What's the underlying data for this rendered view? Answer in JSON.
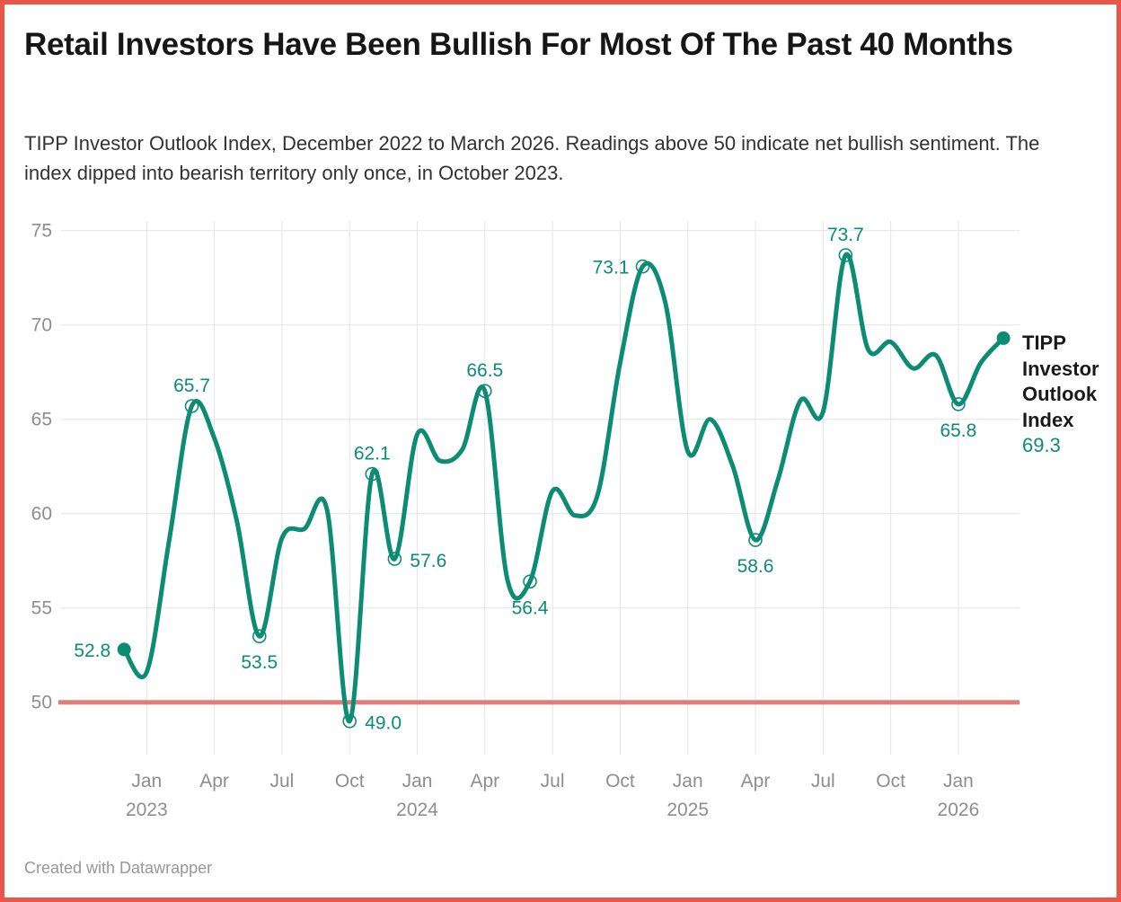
{
  "header": {
    "title": "Retail Investors Have Been Bullish For Most Of The Past 40 Months",
    "subtitle": "TIPP Investor Outlook Index, December 2022 to March 2026. Readings above 50 indicate net bullish sentiment. The index dipped into bearish territory only once, in October 2023."
  },
  "footer": {
    "credit": "Created with Datawrapper"
  },
  "side_label": {
    "lines": [
      "TIPP",
      "Investor",
      "Outlook",
      "Index"
    ],
    "value": "69.3"
  },
  "colors": {
    "line": "#0d8c74",
    "baseline": "#e27c78",
    "frame_border": "#e9574a",
    "grid": "#e4e4e4",
    "axis_text": "#8e8e8e",
    "title_text": "#161616",
    "subtitle_text": "#323232",
    "credit_text": "#979797",
    "label_text": "#0d8c74"
  },
  "chart_data": {
    "type": "line",
    "title": "Retail Investors Have Been Bullish For Most Of The Past 40 Months",
    "series_name": "TIPP Investor Outlook Index",
    "xlabel": "",
    "ylabel": "",
    "ylim": [
      47,
      75.5
    ],
    "grid": true,
    "legend_position": "right-annotation",
    "x": [
      "Dec 2022",
      "Jan 2023",
      "Feb 2023",
      "Mar 2023",
      "Apr 2023",
      "May 2023",
      "Jun 2023",
      "Jul 2023",
      "Aug 2023",
      "Sep 2023",
      "Oct 2023",
      "Nov 2023",
      "Dec 2023",
      "Jan 2024",
      "Feb 2024",
      "Mar 2024",
      "Apr 2024",
      "May 2024",
      "Jun 2024",
      "Jul 2024",
      "Aug 2024",
      "Sep 2024",
      "Oct 2024",
      "Nov 2024",
      "Dec 2024",
      "Jan 2025",
      "Feb 2025",
      "Mar 2025",
      "Apr 2025",
      "May 2025",
      "Jun 2025",
      "Jul 2025",
      "Aug 2025",
      "Sep 2025",
      "Oct 2025",
      "Nov 2025",
      "Dec 2025",
      "Jan 2026",
      "Feb 2026",
      "Mar 2026"
    ],
    "values": [
      52.8,
      51.6,
      58.6,
      65.7,
      64.0,
      59.6,
      53.5,
      58.7,
      59.2,
      60.2,
      49.0,
      62.1,
      57.6,
      64.2,
      62.8,
      63.4,
      66.5,
      56.5,
      56.4,
      61.2,
      59.9,
      61.0,
      68.0,
      73.1,
      71.2,
      63.3,
      65.0,
      62.5,
      58.6,
      61.8,
      66.0,
      65.4,
      73.7,
      68.7,
      69.1,
      67.7,
      68.4,
      65.8,
      68.0,
      69.3
    ],
    "y_axis": {
      "ticks": [
        75,
        70,
        65,
        60,
        55,
        50
      ]
    },
    "x_axis": {
      "ticks": [
        {
          "i": 1,
          "label": "Jan",
          "year": "2023"
        },
        {
          "i": 4,
          "label": "Apr"
        },
        {
          "i": 7,
          "label": "Jul"
        },
        {
          "i": 10,
          "label": "Oct"
        },
        {
          "i": 13,
          "label": "Jan",
          "year": "2024"
        },
        {
          "i": 16,
          "label": "Apr"
        },
        {
          "i": 19,
          "label": "Jul"
        },
        {
          "i": 22,
          "label": "Oct"
        },
        {
          "i": 25,
          "label": "Jan",
          "year": "2025"
        },
        {
          "i": 28,
          "label": "Apr"
        },
        {
          "i": 31,
          "label": "Jul"
        },
        {
          "i": 34,
          "label": "Oct"
        },
        {
          "i": 37,
          "label": "Jan",
          "year": "2026"
        }
      ]
    },
    "baseline": {
      "value": 50
    },
    "point_labels": [
      {
        "i": 0,
        "text": "52.8",
        "pos": "left"
      },
      {
        "i": 3,
        "text": "65.7",
        "pos": "above"
      },
      {
        "i": 6,
        "text": "53.5",
        "pos": "below"
      },
      {
        "i": 10,
        "text": "49.0",
        "pos": "right"
      },
      {
        "i": 11,
        "text": "62.1",
        "pos": "above"
      },
      {
        "i": 12,
        "text": "57.6",
        "pos": "right"
      },
      {
        "i": 16,
        "text": "66.5",
        "pos": "above"
      },
      {
        "i": 18,
        "text": "56.4",
        "pos": "below"
      },
      {
        "i": 23,
        "text": "73.1",
        "pos": "left"
      },
      {
        "i": 28,
        "text": "58.6",
        "pos": "below"
      },
      {
        "i": 32,
        "text": "73.7",
        "pos": "above"
      },
      {
        "i": 37,
        "text": "65.8",
        "pos": "below"
      }
    ],
    "end_markers": [
      0,
      39
    ]
  }
}
